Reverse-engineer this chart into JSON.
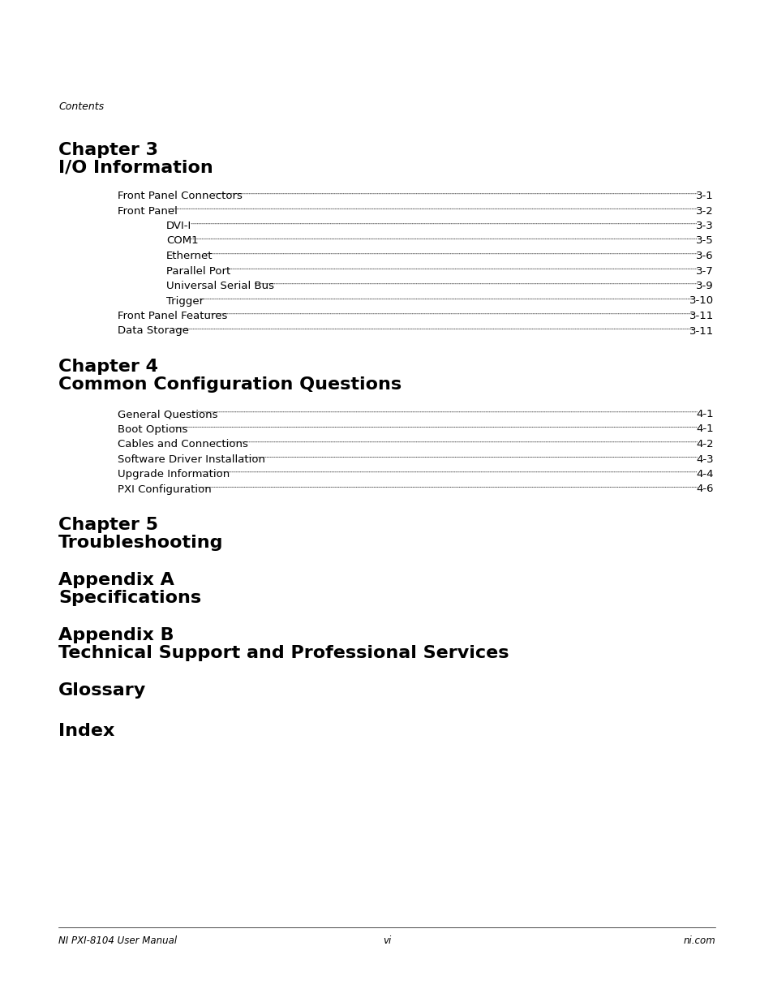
{
  "bg_color": "#ffffff",
  "header_label": "Contents",
  "chapter3_line1": "Chapter 3",
  "chapter3_line2": "I/O Information",
  "chapter4_line1": "Chapter 4",
  "chapter4_line2": "Common Configuration Questions",
  "chapter5_line1": "Chapter 5",
  "chapter5_line2": "Troubleshooting",
  "appendixA_line1": "Appendix A",
  "appendixA_line2": "Specifications",
  "appendixB_line1": "Appendix B",
  "appendixB_line2": "Technical Support and Professional Services",
  "glossary": "Glossary",
  "index": "Index",
  "footer_left": "NI PXI-8104 User Manual",
  "footer_center": "vi",
  "footer_right": "ni.com",
  "toc_entries_ch3": [
    {
      "label": "Front Panel Connectors",
      "page": "3-1",
      "indent": 1
    },
    {
      "label": "Front Panel",
      "page": "3-2",
      "indent": 1
    },
    {
      "label": "DVI-I",
      "page": "3-3",
      "indent": 2
    },
    {
      "label": "COM1",
      "page": "3-5",
      "indent": 2
    },
    {
      "label": "Ethernet",
      "page": "3-6",
      "indent": 2
    },
    {
      "label": "Parallel Port",
      "page": "3-7",
      "indent": 2
    },
    {
      "label": "Universal Serial Bus",
      "page": "3-9",
      "indent": 2
    },
    {
      "label": "Trigger",
      "page": "3-10",
      "indent": 2
    },
    {
      "label": "Front Panel Features",
      "page": "3-11",
      "indent": 1
    },
    {
      "label": "Data Storage",
      "page": "3-11",
      "indent": 1
    }
  ],
  "toc_entries_ch4": [
    {
      "label": "General Questions",
      "page": "4-1",
      "indent": 1
    },
    {
      "label": "Boot Options",
      "page": "4-1",
      "indent": 1
    },
    {
      "label": "Cables and Connections",
      "page": "4-2",
      "indent": 1
    },
    {
      "label": "Software Driver Installation",
      "page": "4-3",
      "indent": 1
    },
    {
      "label": "Upgrade Information",
      "page": "4-4",
      "indent": 1
    },
    {
      "label": "PXI Configuration",
      "page": "4-6",
      "indent": 1
    }
  ]
}
